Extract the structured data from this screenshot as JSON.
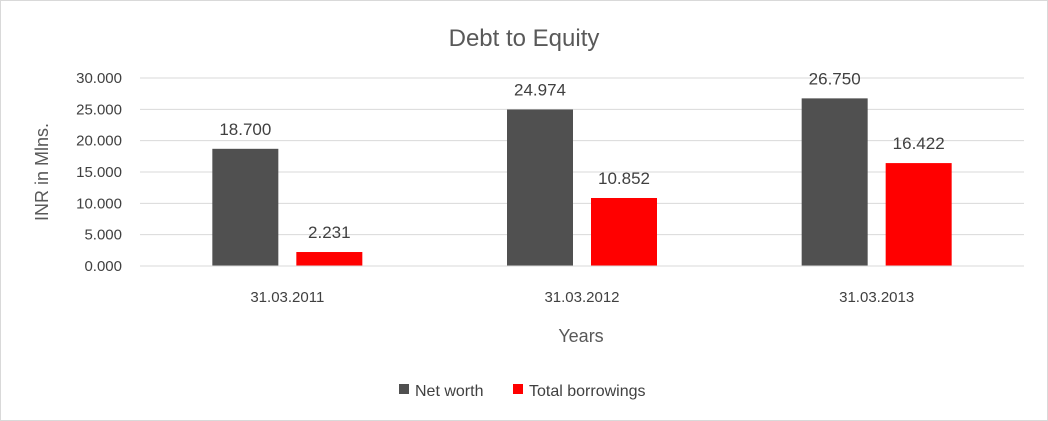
{
  "chart_data": {
    "type": "bar",
    "title": "Debt to Equity",
    "xlabel": "Years",
    "ylabel": "INR in Mlns.",
    "categories": [
      "31.03.2011",
      "31.03.2012",
      "31.03.2013"
    ],
    "series": [
      {
        "name": "Net worth",
        "color": "#505050",
        "values": [
          18.7,
          24.974,
          26.75
        ],
        "labels": [
          "18.700",
          "24.974",
          "26.750"
        ]
      },
      {
        "name": "Total borrowings",
        "color": "#ff0000",
        "values": [
          2.231,
          10.852,
          16.422
        ],
        "labels": [
          "2.231",
          "10.852",
          "16.422"
        ]
      }
    ],
    "ylim": [
      0,
      30
    ],
    "yticks": [
      "0.000",
      "5.000",
      "10.000",
      "15.000",
      "20.000",
      "25.000",
      "30.000"
    ],
    "grid": true,
    "legend": "bottom"
  }
}
